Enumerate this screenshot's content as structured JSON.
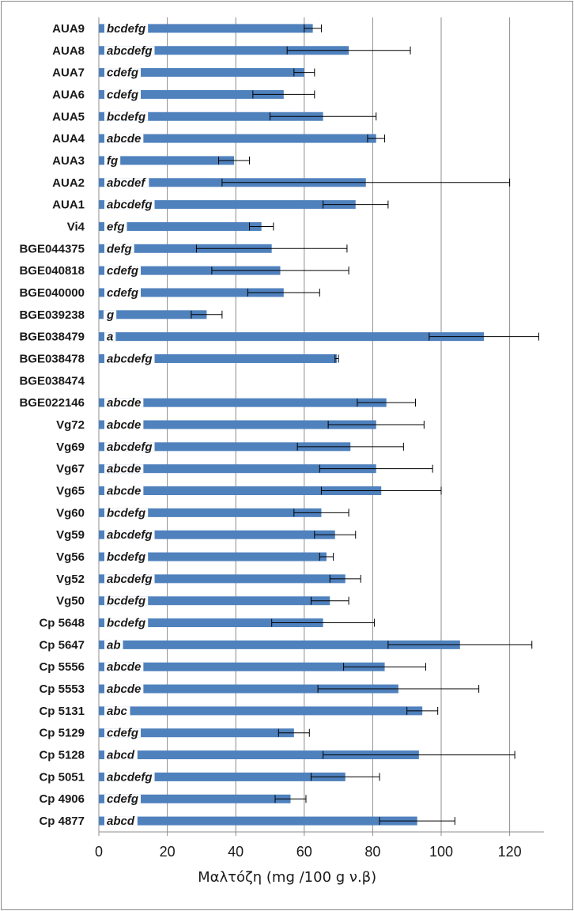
{
  "chart_data": {
    "type": "bar",
    "orientation": "horizontal",
    "xlabel": "Μαλτόζη (mg /100 g ν.β)",
    "xlim": [
      0,
      130
    ],
    "xticks": [
      0,
      20,
      40,
      60,
      80,
      100,
      120
    ],
    "grid": true,
    "color": "#4f81bd",
    "categories": [
      "AUA9",
      "AUA8",
      "AUA7",
      "AUA6",
      "AUA5",
      "AUA4",
      "AUA3",
      "AUA2",
      "AUA1",
      "Vi4",
      "BGE044375",
      "BGE040818",
      "BGE040000",
      "BGE039238",
      "BGE038479",
      "BGE038478",
      "BGE038474",
      "BGE022146",
      "Vg72",
      "Vg69",
      "Vg67",
      "Vg65",
      "Vg60",
      "Vg59",
      "Vg56",
      "Vg52",
      "Vg50",
      "Cp 5648",
      "Cp 5647",
      "Cp 5556",
      "Cp 5553",
      "Cp 5131",
      "Cp 5129",
      "Cp 5128",
      "Cp 5051",
      "Cp 4906",
      "Cp 4877"
    ],
    "values": [
      62.5,
      73,
      60,
      54,
      65.5,
      81,
      39.5,
      78,
      75,
      47.5,
      50.5,
      53,
      54,
      31.5,
      112.5,
      69.5,
      null,
      84,
      81,
      73.5,
      81,
      82.5,
      65,
      69,
      66.5,
      72,
      67.5,
      65.5,
      105.5,
      83.5,
      87.5,
      94.5,
      57,
      93.5,
      72,
      56,
      93
    ],
    "error": [
      2.5,
      18,
      3,
      9,
      15.5,
      2.5,
      4.5,
      42,
      9.5,
      3.5,
      22,
      20,
      10.5,
      4.5,
      16,
      0.5,
      null,
      8.5,
      14,
      15.5,
      16.5,
      17.5,
      8,
      6,
      2,
      4.5,
      5.5,
      15,
      21,
      12,
      23.5,
      4.5,
      4.5,
      28,
      10,
      4.5,
      11
    ],
    "groups": [
      "bcdefg",
      "abcdefg",
      "cdefg",
      "cdefg",
      "bcdefg",
      "abcde",
      "fg",
      "abcdef",
      "abcdefg",
      "efg",
      "defg",
      "cdefg",
      "cdefg",
      "g",
      "a",
      "abcdefg",
      "",
      "abcde",
      "abcde",
      "abcdefg",
      "abcde",
      "abcde",
      "bcdefg",
      "abcdefg",
      "bcdefg",
      "abcdefg",
      "bcdefg",
      "bcdefg",
      "ab",
      "abcde",
      "abcde",
      "abc",
      "cdefg",
      "abcd",
      "abcdefg",
      "cdefg",
      "abcd"
    ]
  }
}
